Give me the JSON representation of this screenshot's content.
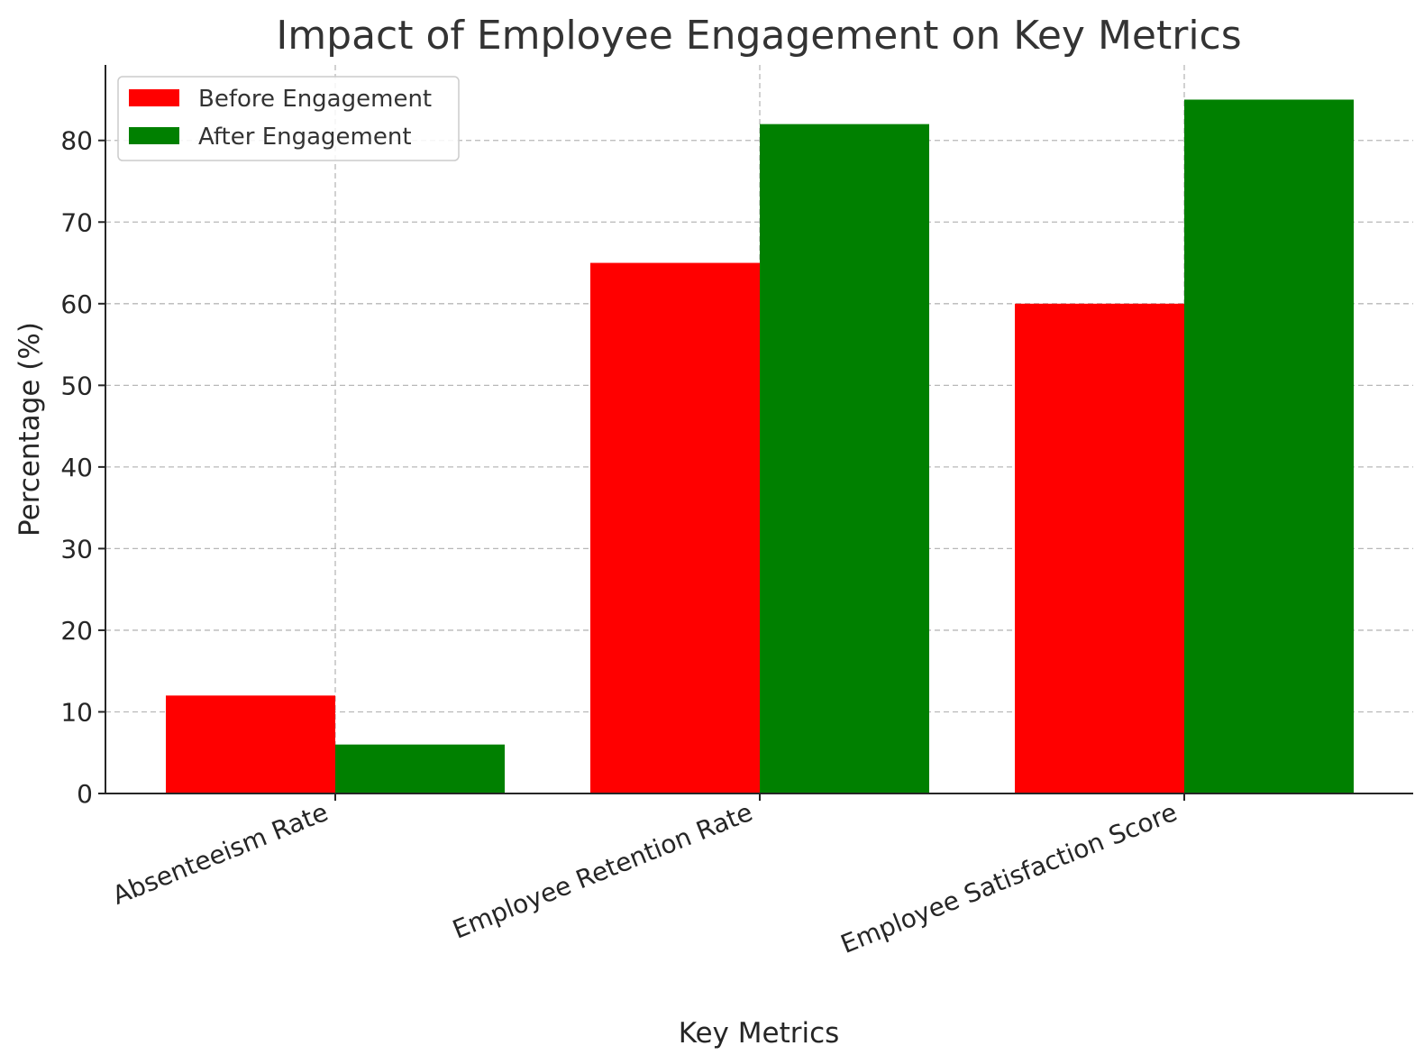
{
  "chart_data": {
    "type": "bar",
    "title": "Impact of Employee Engagement on Key Metrics",
    "xlabel": "Key Metrics",
    "ylabel": "Percentage (%)",
    "categories": [
      "Absenteeism Rate",
      "Employee Retention Rate",
      "Employee Satisfaction Score"
    ],
    "series": [
      {
        "name": "Before Engagement",
        "values": [
          12,
          65,
          60
        ],
        "color": "#ff0000"
      },
      {
        "name": "After Engagement",
        "values": [
          6,
          82,
          85
        ],
        "color": "#008000"
      }
    ],
    "ylim": [
      0,
      89.25
    ],
    "yticks": [
      0,
      10,
      20,
      30,
      40,
      50,
      60,
      70,
      80
    ],
    "grid": true,
    "legend": "top-left"
  }
}
